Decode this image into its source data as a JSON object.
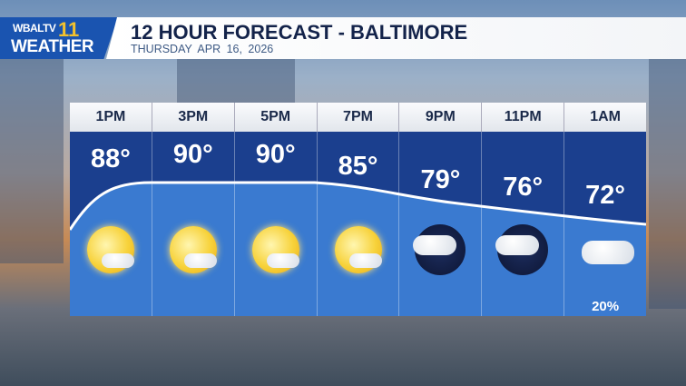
{
  "logo": {
    "line1": "WBALTV",
    "channel": "11",
    "line2": "WEATHER"
  },
  "header": {
    "title": "12 HOUR FORECAST - BALTIMORE",
    "day": "THURSDAY",
    "date": "APR 16, 2026"
  },
  "forecast": [
    {
      "time": "1PM",
      "temp": "88°",
      "icon": "sunny-partly-cloudy-icon",
      "precip": ""
    },
    {
      "time": "3PM",
      "temp": "90°",
      "icon": "sunny-partly-cloudy-icon",
      "precip": ""
    },
    {
      "time": "5PM",
      "temp": "90°",
      "icon": "sunny-partly-cloudy-icon",
      "precip": ""
    },
    {
      "time": "7PM",
      "temp": "85°",
      "icon": "sunny-partly-cloudy-icon",
      "precip": ""
    },
    {
      "time": "9PM",
      "temp": "79°",
      "icon": "night-partly-cloudy-icon",
      "precip": ""
    },
    {
      "time": "11PM",
      "temp": "76°",
      "icon": "night-partly-cloudy-icon",
      "precip": ""
    },
    {
      "time": "1AM",
      "temp": "72°",
      "icon": "cloudy-icon",
      "precip": "20%"
    }
  ],
  "colors": {
    "upper": "#1b3f8e",
    "lower": "#3a7ad0",
    "logo": "#1a54b0",
    "title": "#13234a"
  }
}
